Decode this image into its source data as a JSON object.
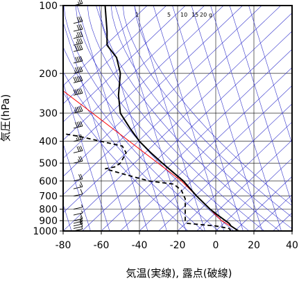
{
  "chart_data": {
    "type": "skew-t",
    "xlabel": "気温(実線), 露点(破線)",
    "ylabel": "気圧(hPa)",
    "xlim": [
      -80,
      40
    ],
    "ylim": [
      1000,
      100
    ],
    "x_ticks": [
      "-80",
      "-60",
      "-40",
      "-20",
      "0",
      "20",
      "40"
    ],
    "x_tick_values": [
      -80,
      -60,
      -40,
      -20,
      0,
      20,
      40
    ],
    "y_ticks": [
      "100",
      "200",
      "300",
      "400",
      "500",
      "600",
      "700",
      "800",
      "900",
      "1000"
    ],
    "y_tick_values": [
      100,
      200,
      300,
      400,
      500,
      600,
      700,
      800,
      900,
      1000
    ],
    "mixing_ratio_labels": [
      "1",
      "5",
      "10",
      "15",
      "20",
      "g"
    ],
    "mixing_ratio_values": [
      1,
      5,
      10,
      15,
      20
    ],
    "grid": true,
    "colors": {
      "isotherm": "#3333cc",
      "temperature": "#000000",
      "dewpoint": "#000000",
      "parcel": "#ff0000",
      "frame": "#000000"
    },
    "temperature_profile": [
      {
        "p": 1000,
        "t": 12
      },
      {
        "p": 975,
        "t": 10
      },
      {
        "p": 950,
        "t": 8
      },
      {
        "p": 925,
        "t": 7
      },
      {
        "p": 900,
        "t": 5
      },
      {
        "p": 850,
        "t": 1
      },
      {
        "p": 800,
        "t": -3
      },
      {
        "p": 700,
        "t": -10
      },
      {
        "p": 600,
        "t": -17
      },
      {
        "p": 500,
        "t": -28
      },
      {
        "p": 450,
        "t": -34
      },
      {
        "p": 400,
        "t": -40
      },
      {
        "p": 350,
        "t": -45
      },
      {
        "p": 300,
        "t": -50
      },
      {
        "p": 250,
        "t": -51
      },
      {
        "p": 200,
        "t": -50
      },
      {
        "p": 170,
        "t": -52
      },
      {
        "p": 150,
        "t": -57
      },
      {
        "p": 130,
        "t": -57
      },
      {
        "p": 100,
        "t": -58
      }
    ],
    "dewpoint_profile": [
      {
        "p": 1000,
        "t": 8
      },
      {
        "p": 975,
        "t": 7
      },
      {
        "p": 950,
        "t": 0
      },
      {
        "p": 925,
        "t": -15
      },
      {
        "p": 900,
        "t": -16
      },
      {
        "p": 850,
        "t": -16
      },
      {
        "p": 800,
        "t": -16
      },
      {
        "p": 720,
        "t": -16
      },
      {
        "p": 660,
        "t": -18
      },
      {
        "p": 620,
        "t": -22
      },
      {
        "p": 600,
        "t": -35
      },
      {
        "p": 560,
        "t": -48
      },
      {
        "p": 530,
        "t": -58
      },
      {
        "p": 520,
        "t": -53
      },
      {
        "p": 500,
        "t": -50
      },
      {
        "p": 450,
        "t": -47
      },
      {
        "p": 420,
        "t": -49
      },
      {
        "p": 380,
        "t": -72
      },
      {
        "p": 370,
        "t": -80
      }
    ],
    "parcel_path": [
      {
        "p": 1000,
        "t": 12
      },
      {
        "p": 900,
        "t": 3
      },
      {
        "p": 600,
        "t": -18
      },
      {
        "p": 200,
        "t": -92
      }
    ],
    "wind_barbs": [
      {
        "p": 1000,
        "speed": 5,
        "dir": 300
      },
      {
        "p": 975,
        "speed": 10,
        "dir": 290
      },
      {
        "p": 950,
        "speed": 15,
        "dir": 280
      },
      {
        "p": 925,
        "speed": 15,
        "dir": 280
      },
      {
        "p": 900,
        "speed": 10,
        "dir": 270
      },
      {
        "p": 850,
        "speed": 5,
        "dir": 260
      },
      {
        "p": 800,
        "speed": 5,
        "dir": 250
      },
      {
        "p": 700,
        "speed": 10,
        "dir": 260
      },
      {
        "p": 650,
        "speed": 15,
        "dir": 270
      },
      {
        "p": 600,
        "speed": 20,
        "dir": 270
      },
      {
        "p": 500,
        "speed": 25,
        "dir": 270
      },
      {
        "p": 450,
        "speed": 30,
        "dir": 270
      },
      {
        "p": 400,
        "speed": 35,
        "dir": 270
      },
      {
        "p": 350,
        "speed": 40,
        "dir": 270
      },
      {
        "p": 300,
        "speed": 45,
        "dir": 270
      },
      {
        "p": 250,
        "speed": 50,
        "dir": 270
      },
      {
        "p": 220,
        "speed": 50,
        "dir": 270
      },
      {
        "p": 200,
        "speed": 45,
        "dir": 270
      },
      {
        "p": 180,
        "speed": 40,
        "dir": 270
      },
      {
        "p": 160,
        "speed": 40,
        "dir": 270
      },
      {
        "p": 150,
        "speed": 35,
        "dir": 270
      },
      {
        "p": 140,
        "speed": 35,
        "dir": 270
      },
      {
        "p": 130,
        "speed": 30,
        "dir": 270
      },
      {
        "p": 120,
        "speed": 30,
        "dir": 270
      },
      {
        "p": 100,
        "speed": 25,
        "dir": 270
      }
    ]
  }
}
